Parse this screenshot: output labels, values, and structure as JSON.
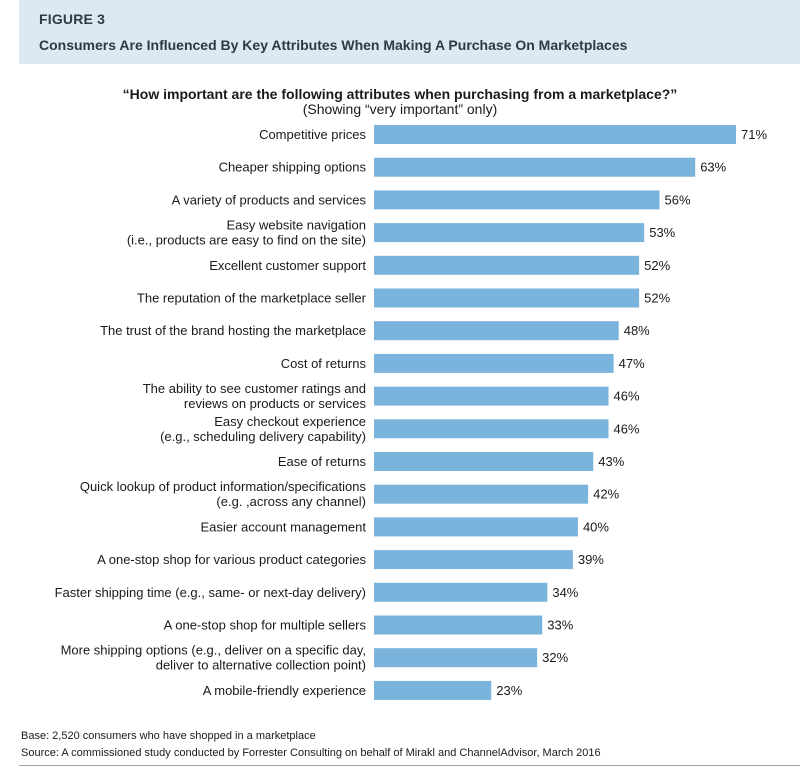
{
  "figure": {
    "label": "FIGURE 3",
    "title": "Consumers Are Influenced By Key Attributes When Making A Purchase On Marketplaces"
  },
  "chart_data": {
    "type": "bar",
    "orientation": "horizontal",
    "title": "“How important are the following attributes when purchasing from a marketplace?”",
    "subtitle": "(Showing “very important” only)",
    "categories": [
      [
        "Competitive prices"
      ],
      [
        "Cheaper shipping options"
      ],
      [
        "A variety of products and services"
      ],
      [
        "Easy website navigation",
        "(i.e., products are easy to find on the site)"
      ],
      [
        "Excellent customer support"
      ],
      [
        "The reputation of the marketplace seller"
      ],
      [
        "The trust of the brand hosting the marketplace"
      ],
      [
        "Cost of returns"
      ],
      [
        "The ability to see customer ratings and",
        "reviews on products or services"
      ],
      [
        "Easy checkout experience",
        "(e.g., scheduling delivery capability)"
      ],
      [
        "Ease of returns"
      ],
      [
        "Quick lookup of product information/specifications",
        "(e.g. ,across any channel)"
      ],
      [
        "Easier account management"
      ],
      [
        "A one-stop shop for various product categories"
      ],
      [
        "Faster shipping time (e.g., same- or next-day delivery)"
      ],
      [
        "A one-stop shop for multiple sellers"
      ],
      [
        "More shipping options (e.g., deliver on a specific day,",
        "deliver to alternative collection point)"
      ],
      [
        "A mobile-friendly experience"
      ]
    ],
    "values": [
      71,
      63,
      56,
      53,
      52,
      52,
      48,
      47,
      46,
      46,
      43,
      42,
      40,
      39,
      34,
      33,
      32,
      23
    ],
    "value_labels": [
      "71%",
      "63%",
      "56%",
      "53%",
      "52%",
      "52%",
      "48%",
      "47%",
      "46%",
      "46%",
      "43%",
      "42%",
      "40%",
      "39%",
      "34%",
      "33%",
      "32%",
      "23%"
    ],
    "xlim": [
      0,
      71
    ],
    "bar_color": "#7ab4dc",
    "grid": false
  },
  "notes": {
    "base": "Base: 2,520 consumers who have shopped in a marketplace",
    "source": "Source: A commissioned study conducted by Forrester Consulting on behalf of Mirakl and ChannelAdvisor, March 2016"
  }
}
